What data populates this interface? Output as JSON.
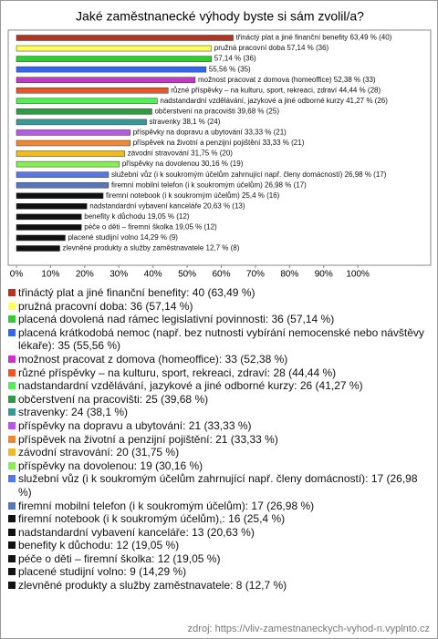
{
  "chart_data": {
    "type": "hbar",
    "title": "Jaké zaměstnanecké výhody byste si sám zvolil/a?",
    "values": [
      63.49,
      57.14,
      57.14,
      55.56,
      52.38,
      44.44,
      41.27,
      39.68,
      38.1,
      33.33,
      33.33,
      31.75,
      30.16,
      26.98,
      26.98,
      25.4,
      20.63,
      19.05,
      19.05,
      14.29,
      12.7
    ],
    "value_labels": [
      "třináctý plat a jiné finanční benefity 63,49 % (40)",
      "pružná pracovní doba 57,14 % (36)",
      "57,14 % (36)",
      "55,56 % (35)",
      "možnost pracovat z domova (homeoffice) 52,38 % (33)",
      "různé příspěvky – na kulturu, sport, rekreaci, zdraví 44,44 % (28)",
      "nadstandardní vzdělávání, jazykové a jiné odborné kurzy 41,27 % (26)",
      "občerstvení na pracovišti 39,68 % (25)",
      "stravenky 38,1 % (24)",
      "příspěvky na dopravu a ubytování 33,33 % (21)",
      "příspěvek na životní a penzijní pojištění 33,33 % (21)",
      "závodní stravování 31,75 % (20)",
      "příspěvky na dovolenou 30,16 % (19)",
      "služební vůz (i k soukromým účelům zahrnující např. členy domácností) 26,98 % (17)",
      "firemní mobilní telefon (i k soukromým účelům) 26,98 % (17)",
      "firemní notebook (i k soukromým účelům) 25,4 % (16)",
      "nadstandardní vybavení kanceláře 20,63 % (13)",
      "benefity k důchodu 19,05 % (12)",
      "péče o děti – firemní školka 19,05 % (12)",
      "placené studijní volno 14,29 % (9)",
      "zlevněné produkty a služby zaměstnavatele 12,7 % (8)"
    ],
    "legend_labels": [
      "třináctý plat a jiné finanční benefity: 40 (63,49 %)",
      "pružná pracovní doba: 36 (57,14 %)",
      "placená dovolená nad rámec legislativní povinnosti: 36 (57,14 %)",
      "placená krátkodobá nemoc (např. bez nutnosti vybírání nemocenské nebo návštěvy lékaře): 35 (55,56 %)",
      "možnost pracovat z domova (homeoffice): 33 (52,38 %)",
      "různé příspěvky – na kulturu, sport, rekreaci, zdraví: 28 (44,44 %)",
      "nadstandardní vzdělávání, jazykové a jiné odborné kurzy: 26 (41,27 %)",
      "občerstvení na pracovišti: 25 (39,68 %)",
      "stravenky: 24 (38,1 %)",
      "příspěvky na dopravu a ubytování: 21 (33,33 %)",
      "příspěvek na životní a penzijní pojištění: 21 (33,33 %)",
      "závodní stravování: 20 (31,75 %)",
      "příspěvky na dovolenou: 19 (30,16 %)",
      "služební vůz (i k soukromým účelům zahrnující např. členy domácností): 17 (26,98 %)",
      "firemní mobilní telefon (i k soukromým účelům): 17 (26,98 %)",
      "firemní notebook (i k soukromým účelům),: 16 (25,4 %)",
      "nadstandardní vybavení kanceláře: 13 (20,63 %)",
      "benefity k důchodu: 12 (19,05 %)",
      "péče o děti – firemní školka: 12 (19,05 %)",
      "placené studijní volno: 9 (14,29 %)",
      "zlevněné produkty a služby zaměstnavatele: 8 (12,7 %)"
    ],
    "colors": [
      "#b8321e",
      "#ffff55",
      "#33cc33",
      "#3366ee",
      "#cc33cc",
      "#ee5522",
      "#55ee55",
      "#339944",
      "#339999",
      "#bb55ee",
      "#ee8833",
      "#eebb22",
      "#88ee55",
      "#5577ee",
      "#5577bb",
      "#111111",
      "#111111",
      "#111111",
      "#111111",
      "#111111",
      "#111111"
    ],
    "xlim": [
      0,
      120
    ],
    "xticks": [
      {
        "value": 0,
        "label": "0%"
      },
      {
        "value": 10,
        "label": "10%"
      },
      {
        "value": 20,
        "label": "20%"
      },
      {
        "value": 30,
        "label": "30%"
      },
      {
        "value": 40,
        "label": "40%"
      },
      {
        "value": 50,
        "label": "50%"
      },
      {
        "value": 60,
        "label": "60%"
      },
      {
        "value": 70,
        "label": "70%"
      },
      {
        "value": 80,
        "label": "80%"
      },
      {
        "value": 90,
        "label": "90%"
      },
      {
        "value": 100,
        "label": "100%"
      }
    ],
    "source": "zdroj: https://vliv-zamestnaneckych-vyhod-n.vyplnto.cz"
  }
}
